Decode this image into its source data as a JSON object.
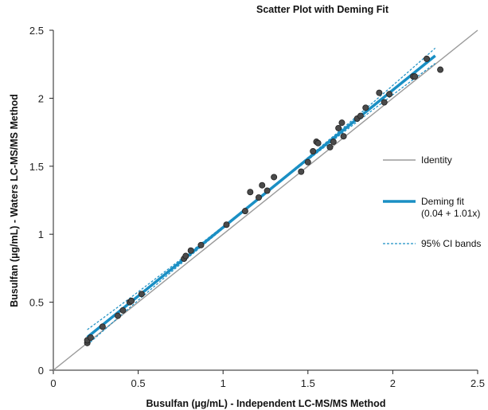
{
  "chart_data": {
    "type": "scatter",
    "title": "Scatter Plot with Deming Fit",
    "xlabel": "Busulfan (µg/mL) - Independent LC-MS/MS Method",
    "ylabel": "Busulfan (µg/mL) - Waters LC-MS/MS Method",
    "xlim": [
      0,
      2.5
    ],
    "ylim": [
      0,
      2.5
    ],
    "x_ticks": [
      "0",
      "0.5",
      "1",
      "1.5",
      "2",
      "2.5"
    ],
    "y_ticks": [
      "0",
      "0.5",
      "1",
      "1.5",
      "2",
      "2.5"
    ],
    "grid": false,
    "legend_position": "right",
    "colors": {
      "points": "#4a4a4a",
      "identity": "#9a9a9a",
      "deming": "#1a8fc4",
      "ci": "#1a8fc4"
    },
    "fit": {
      "intercept": 0.04,
      "slope": 1.01,
      "x_range": [
        0.2,
        2.25
      ]
    },
    "legend": [
      {
        "key": "identity",
        "label": "Identity"
      },
      {
        "key": "deming",
        "label": "Deming fit",
        "label2": "(0.04 + 1.01x)"
      },
      {
        "key": "ci",
        "label": "95% CI bands"
      }
    ],
    "series": [
      {
        "name": "",
        "points": [
          [
            0.2,
            0.2
          ],
          [
            0.2,
            0.22
          ],
          [
            0.22,
            0.24
          ],
          [
            0.29,
            0.32
          ],
          [
            0.38,
            0.4
          ],
          [
            0.41,
            0.44
          ],
          [
            0.45,
            0.5
          ],
          [
            0.46,
            0.51
          ],
          [
            0.52,
            0.56
          ],
          [
            0.77,
            0.82
          ],
          [
            0.78,
            0.84
          ],
          [
            0.81,
            0.88
          ],
          [
            0.87,
            0.92
          ],
          [
            1.02,
            1.07
          ],
          [
            1.13,
            1.17
          ],
          [
            1.16,
            1.31
          ],
          [
            1.21,
            1.27
          ],
          [
            1.23,
            1.36
          ],
          [
            1.26,
            1.32
          ],
          [
            1.3,
            1.42
          ],
          [
            1.46,
            1.46
          ],
          [
            1.5,
            1.53
          ],
          [
            1.53,
            1.61
          ],
          [
            1.55,
            1.68
          ],
          [
            1.56,
            1.67
          ],
          [
            1.63,
            1.64
          ],
          [
            1.65,
            1.68
          ],
          [
            1.68,
            1.78
          ],
          [
            1.7,
            1.82
          ],
          [
            1.71,
            1.72
          ],
          [
            1.79,
            1.85
          ],
          [
            1.81,
            1.87
          ],
          [
            1.84,
            1.93
          ],
          [
            1.92,
            2.04
          ],
          [
            1.95,
            1.97
          ],
          [
            1.98,
            2.03
          ],
          [
            2.12,
            2.16
          ],
          [
            2.13,
            2.16
          ],
          [
            2.2,
            2.29
          ],
          [
            2.28,
            2.21
          ]
        ]
      }
    ]
  }
}
